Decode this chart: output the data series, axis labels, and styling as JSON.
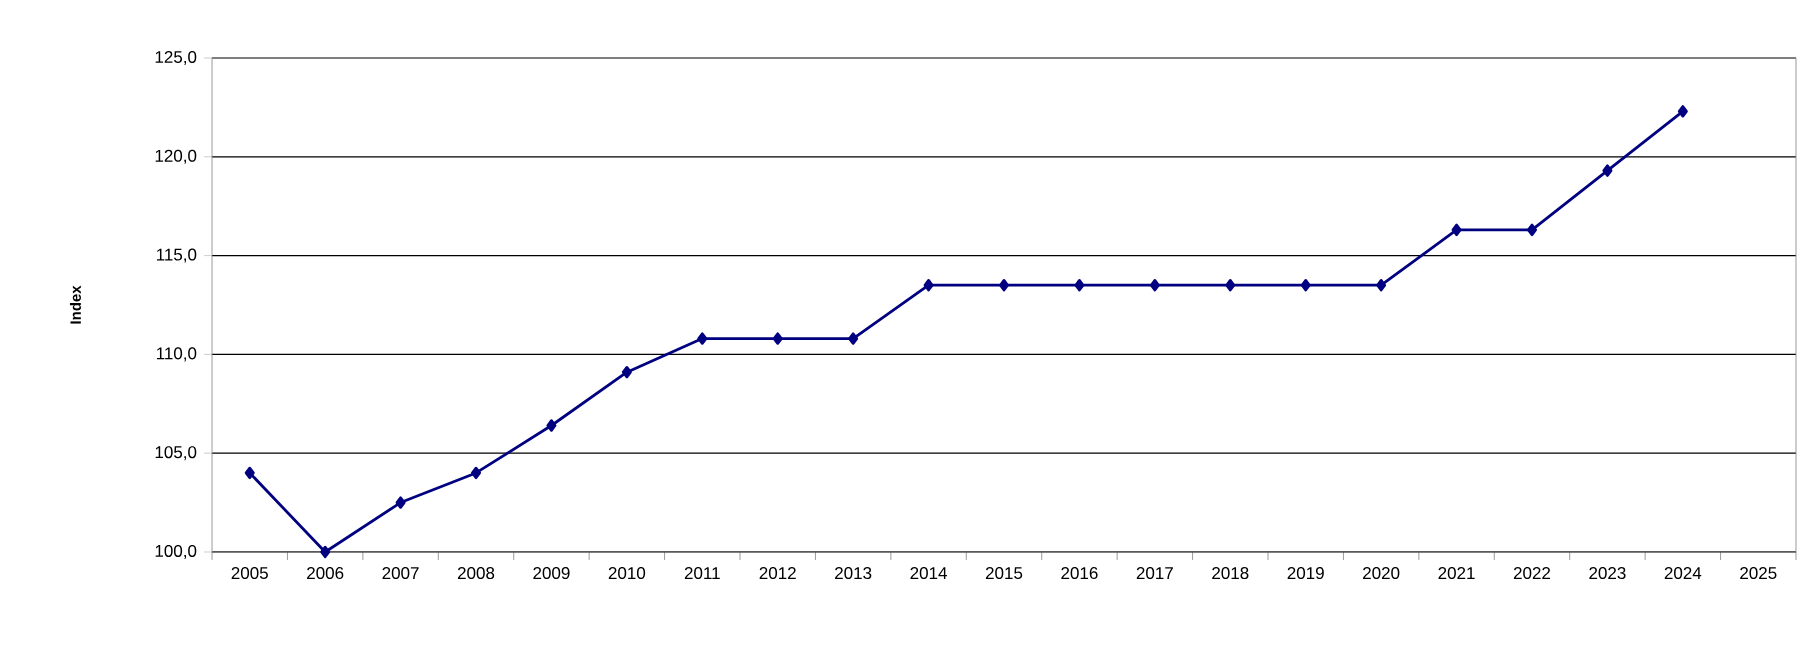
{
  "chart_data": {
    "type": "line",
    "ylabel": "Index",
    "categories": [
      "2005",
      "2006",
      "2007",
      "2008",
      "2009",
      "2010",
      "2011",
      "2012",
      "2013",
      "2014",
      "2015",
      "2016",
      "2017",
      "2018",
      "2019",
      "2020",
      "2021",
      "2022",
      "2023",
      "2024",
      "2025"
    ],
    "series": [
      {
        "color": "#000080",
        "values": [
          104.0,
          100.0,
          102.5,
          104.0,
          106.4,
          109.1,
          110.8,
          110.8,
          110.8,
          113.5,
          113.5,
          113.5,
          113.5,
          113.5,
          113.5,
          113.5,
          116.3,
          116.3,
          119.3,
          122.3,
          null
        ]
      }
    ],
    "ylim": [
      100,
      125
    ],
    "yticks": [
      {
        "value": 100,
        "label": "100,0"
      },
      {
        "value": 105,
        "label": "105,0"
      },
      {
        "value": 110,
        "label": "110,0"
      },
      {
        "value": 115,
        "label": "115,0"
      },
      {
        "value": 120,
        "label": "120,0"
      },
      {
        "value": 125,
        "label": "125,0"
      }
    ],
    "grid": "y",
    "marker": "diamond",
    "line_style": "solid"
  }
}
